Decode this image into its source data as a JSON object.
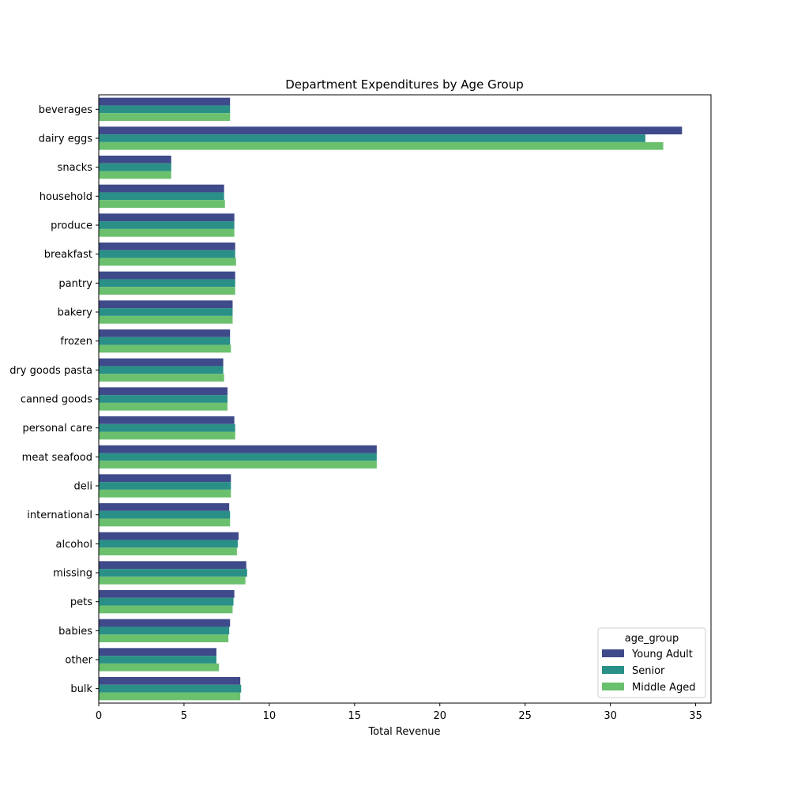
{
  "chart_data": {
    "type": "bar",
    "orientation": "horizontal",
    "title": "Department Expenditures by Age Group",
    "xlabel": "Total Revenue",
    "ylabel": "",
    "xlim": [
      0,
      35.9
    ],
    "xticks": [
      0,
      5,
      10,
      15,
      20,
      25,
      30,
      35
    ],
    "grid": false,
    "categories": [
      "beverages",
      "dairy eggs",
      "snacks",
      "household",
      "produce",
      "breakfast",
      "pantry",
      "bakery",
      "frozen",
      "dry goods pasta",
      "canned goods",
      "personal care",
      "meat seafood",
      "deli",
      "international",
      "alcohol",
      "missing",
      "pets",
      "babies",
      "other",
      "bulk"
    ],
    "legend": {
      "title": "age_group",
      "placement": "lower right"
    },
    "series": [
      {
        "name": "Young Adult",
        "color": "#3e4a89",
        "values": [
          7.7,
          34.2,
          4.25,
          7.35,
          7.95,
          8.0,
          8.0,
          7.85,
          7.7,
          7.3,
          7.55,
          7.95,
          16.3,
          7.75,
          7.65,
          8.2,
          8.65,
          7.95,
          7.7,
          6.9,
          8.3
        ]
      },
      {
        "name": "Senior",
        "color": "#2a8f87",
        "values": [
          7.7,
          32.05,
          4.25,
          7.35,
          7.95,
          8.0,
          8.0,
          7.85,
          7.7,
          7.3,
          7.55,
          8.0,
          16.3,
          7.75,
          7.7,
          8.15,
          8.7,
          7.9,
          7.65,
          6.9,
          8.35
        ]
      },
      {
        "name": "Middle Aged",
        "color": "#6bc06e",
        "values": [
          7.7,
          33.1,
          4.25,
          7.4,
          7.95,
          8.05,
          8.0,
          7.85,
          7.75,
          7.35,
          7.55,
          8.0,
          16.3,
          7.75,
          7.7,
          8.1,
          8.6,
          7.85,
          7.6,
          7.05,
          8.3
        ]
      }
    ]
  }
}
